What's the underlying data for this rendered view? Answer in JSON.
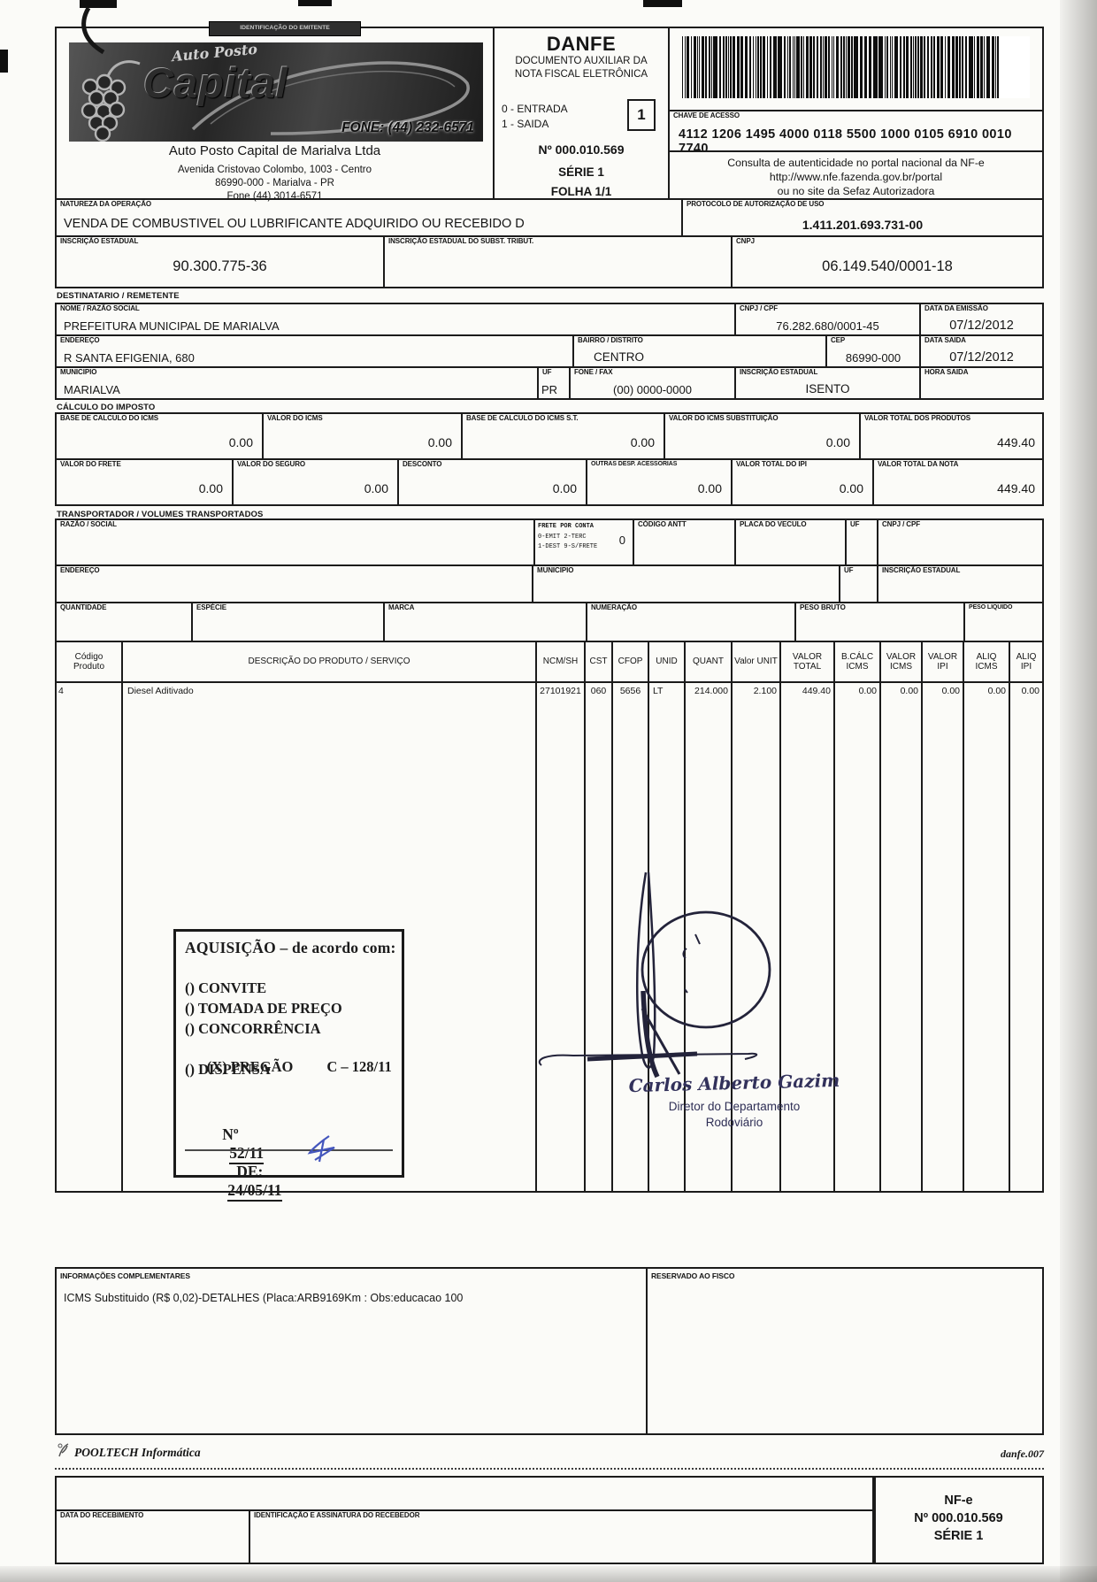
{
  "emitter": {
    "section_label": "IDENTIFICAÇÃO DO EMITENTE",
    "logo": {
      "line1": "Auto Posto",
      "line2": "Capital",
      "phone": "FONE: (44) 232-6571"
    },
    "name": "Auto Posto Capital de Marialva Ltda",
    "address1": "Avenida Cristovao Colombo, 1003 - Centro",
    "address2": "86990-000 - Marialva - PR",
    "address3": "Fone (44) 3014-6571"
  },
  "danfe": {
    "title": "DANFE",
    "subtitle": "DOCUMENTO AUXILIAR DA NOTA FISCAL ELETRÔNICA",
    "entrada": "0 - ENTRADA",
    "saida": "1 - SAIDA",
    "tipo": "1",
    "numero": "Nº 000.010.569",
    "serie": "SÉRIE 1",
    "folha": "FOLHA 1/1"
  },
  "access": {
    "chave_label": "CHAVE DE ACESSO",
    "chave": "4112 1206 1495 4000 0118 5500 1000 0105 6910 0010 7740",
    "consulta1": "Consulta de autenticidade no portal nacional da NF-e",
    "consulta2": "http://www.nfe.fazenda.gov.br/portal",
    "consulta3": "ou no site da Sefaz Autorizadora"
  },
  "natureza": {
    "label": "NATUREZA DA OPERAÇÃO",
    "value": "VENDA DE COMBUSTIVEL OU LUBRIFICANTE ADQUIRIDO OU RECEBIDO D"
  },
  "protocolo": {
    "label": "PROTOCOLO DE AUTORIZAÇÃO DE USO",
    "value": "1.411.201.693.731-00"
  },
  "inscricao": {
    "ie_label": "INSCRIÇÃO ESTADUAL",
    "ie": "90.300.775-36",
    "subst_label": "INSCRIÇÃO ESTADUAL DO SUBST. TRIBUT.",
    "subst": "",
    "cnpj_label": "CNPJ",
    "cnpj": "06.149.540/0001-18"
  },
  "dest": {
    "section": "DESTINATARIO / REMETENTE",
    "nome_label": "NOME / RAZÃO SOCIAL",
    "nome": "PREFEITURA MUNICIPAL DE MARIALVA",
    "cnpj_label": "CNPJ / CPF",
    "cnpj": "76.282.680/0001-45",
    "emissao_label": "DATA DA EMISSÃO",
    "emissao": "07/12/2012",
    "endereco_label": "ENDEREÇO",
    "endereco": "R SANTA EFIGENIA, 680",
    "bairro_label": "BAIRRO / DISTRITO",
    "bairro": "CENTRO",
    "cep_label": "CEP",
    "cep": "86990-000",
    "saida_label": "DATA SAIDA",
    "saida": "07/12/2012",
    "municipio_label": "MUNICIPIO",
    "municipio": "MARIALVA",
    "uf_label": "UF",
    "uf": "PR",
    "fone_label": "FONE / FAX",
    "fone": "(00) 0000-0000",
    "ie_label": "INSCRIÇÃO ESTADUAL",
    "ie": "ISENTO",
    "hora_label": "HORA SAIDA",
    "hora": ""
  },
  "imposto": {
    "section": "CÁLCULO DO IMPOSTO",
    "base_icms_label": "BASE DE CALCULO DO ICMS",
    "base_icms": "0.00",
    "valor_icms_label": "VALOR DO ICMS",
    "valor_icms": "0.00",
    "base_st_label": "BASE DE CALCULO DO ICMS S.T.",
    "base_st": "0.00",
    "icms_subst_label": "VALOR DO ICMS SUBSTITUIÇÃO",
    "icms_subst": "0.00",
    "total_prod_label": "VALOR TOTAL DOS PRODUTOS",
    "total_prod": "449.40",
    "frete_label": "VALOR DO FRETE",
    "frete": "0.00",
    "seguro_label": "VALOR DO SEGURO",
    "seguro": "0.00",
    "desconto_label": "DESCONTO",
    "desconto": "0.00",
    "outras_label": "OUTRAS DESP. ACESSORIAS",
    "outras": "0.00",
    "total_ipi_label": "VALOR TOTAL DO IPI",
    "total_ipi": "0.00",
    "total_nota_label": "VALOR TOTAL DA NOTA",
    "total_nota": "449.40"
  },
  "transp": {
    "section": "TRANSPORTADOR / VOLUMES TRANSPORTADOS",
    "razao_label": "RAZÃO / SOCIAL",
    "frete_label": "FRETE POR CONTA",
    "frete_l1": "0-EMIT 2-TERC",
    "frete_l2": "1-DEST 9-S/FRETE",
    "frete_val": "0",
    "antt_label": "CÓDIGO ANTT",
    "placa_label": "PLACA DO VECULO",
    "uf_label": "UF",
    "cnpj_label": "CNPJ / CPF",
    "endereco_label": "ENDEREÇO",
    "municipio_label": "MUNICIPIO",
    "ie_label": "INSCRIÇÃO ESTADUAL",
    "quantidade_label": "QUANTIDADE",
    "especie_label": "ESPÉCIE",
    "marca_label": "MARCA",
    "numeracao_label": "NUMERAÇÃO",
    "peso_bruto_label": "PESO BRUTO",
    "peso_liquido_label": "PESO LIQUIDO"
  },
  "produtos": {
    "headers": {
      "codigo": "Código Produto",
      "descricao": "DESCRIÇÃO DO PRODUTO / SERVIÇO",
      "ncm": "NCM/SH",
      "cst": "CST",
      "cfop": "CFOP",
      "unid": "UNID",
      "quant": "QUANT",
      "vunit": "Valor UNIT",
      "vtotal": "VALOR TOTAL",
      "bcalc": "B.CÁLC ICMS",
      "vicms": "VALOR ICMS",
      "vipi": "VALOR IPI",
      "aicms": "ALIQ ICMS",
      "aipi": "ALIQ IPI"
    },
    "item": {
      "codigo": "4",
      "descricao": "Diesel Aditivado",
      "ncm": "27101921",
      "cst": "060",
      "cfop": "5656",
      "unid": "LT",
      "quant": "214.000",
      "vunit": "2.100",
      "vtotal": "449.40",
      "bcalc": "0.00",
      "vicms": "0.00",
      "vipi": "0.00",
      "aicms": "0.00",
      "aipi": "0.00"
    }
  },
  "stamp": {
    "title": "AQUISIÇÃO – de acordo com:",
    "opt_convite": "() CONVITE",
    "opt_tomada": "() TOMADA DE PREÇO",
    "opt_concorrencia": "() CONCORRÊNCIA",
    "opt_pregao": "(X) PREGÃO",
    "opt_pregao_ref": "C – 128/11",
    "opt_dispensa": "() DISPENSA",
    "num_label": "Nº",
    "num_value": "52/11",
    "de_label": "DE:",
    "date_value": "24/05/11"
  },
  "signature": {
    "name": "Carlos Alberto Gazim",
    "role1": "Diretor do Departamento",
    "role2": "Rodoviário"
  },
  "info": {
    "label": "INFORMAÇÕES COMPLEMENTARES",
    "value": "ICMS Substituido (R$ 0,02)-DETALHES (Placa:ARB9169Km : Obs:educacao 100",
    "fisco_label": "RESERVADO AO FISCO"
  },
  "footer": {
    "vendor": "POOLTECH Informática",
    "ref": "danfe.007"
  },
  "stub": {
    "data_label": "DATA DO RECEBIMENTO",
    "assinatura_label": "IDENTIFICAÇÃO E ASSINATURA DO RECEBEDOR",
    "nfe_title": "NF-e",
    "nfe_numero": "Nº 000.010.569",
    "nfe_serie": "SÉRIE 1"
  }
}
